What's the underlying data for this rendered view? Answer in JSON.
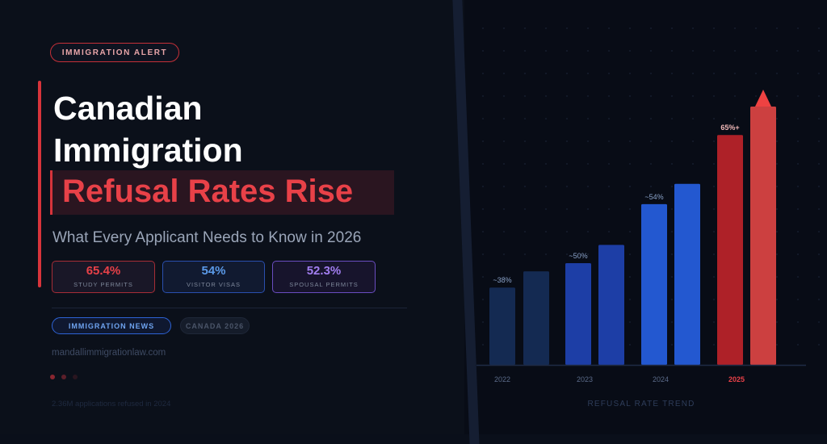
{
  "badge": {
    "label": "IMMIGRATION ALERT"
  },
  "headline": {
    "line1": "Canadian",
    "line2": "Immigration",
    "highlight": "Refusal Rates Rise"
  },
  "subtitle": "What Every Applicant Needs to Know in 2026",
  "stats": [
    {
      "value": "65.4%",
      "label": "STUDY PERMITS",
      "color": "#e84148"
    },
    {
      "value": "54%",
      "label": "VISITOR VISAS",
      "color": "#5b9ae8"
    },
    {
      "value": "52.3%",
      "label": "SPOUSAL PERMITS",
      "color": "#a27ef0"
    }
  ],
  "tags": {
    "primary": "IMMIGRATION NEWS",
    "secondary": "CANADA 2026"
  },
  "website": "mandallimmigrationlaw.com",
  "footnote": "2.36M applications refused in 2024",
  "chart_data": {
    "type": "bar",
    "xlabel": "REFUSAL RATE TREND",
    "categories": [
      "2022",
      "2023",
      "2024",
      "2025"
    ],
    "highlight_category": "2025",
    "value_labels": [
      "~38%",
      "~50%",
      "~54%",
      "65%+"
    ],
    "bars": [
      {
        "group": "2022",
        "value": 38,
        "color": "#142a52"
      },
      {
        "group": "2022",
        "value": 46,
        "color": "#142a52"
      },
      {
        "group": "2023",
        "value": 50,
        "color": "#1d3ea6"
      },
      {
        "group": "2023",
        "value": 59,
        "color": "#1d3ea6"
      },
      {
        "group": "2024",
        "value": 79,
        "color": "#2358d0"
      },
      {
        "group": "2024",
        "value": 89,
        "color": "#2358d0"
      },
      {
        "group": "2025",
        "value": 113,
        "color": "#ae2128"
      },
      {
        "group": "2025",
        "value": 127,
        "color": "#cc4040"
      }
    ],
    "trend_arrow_color": "#ee4242",
    "ylim": [
      0,
      135
    ]
  }
}
